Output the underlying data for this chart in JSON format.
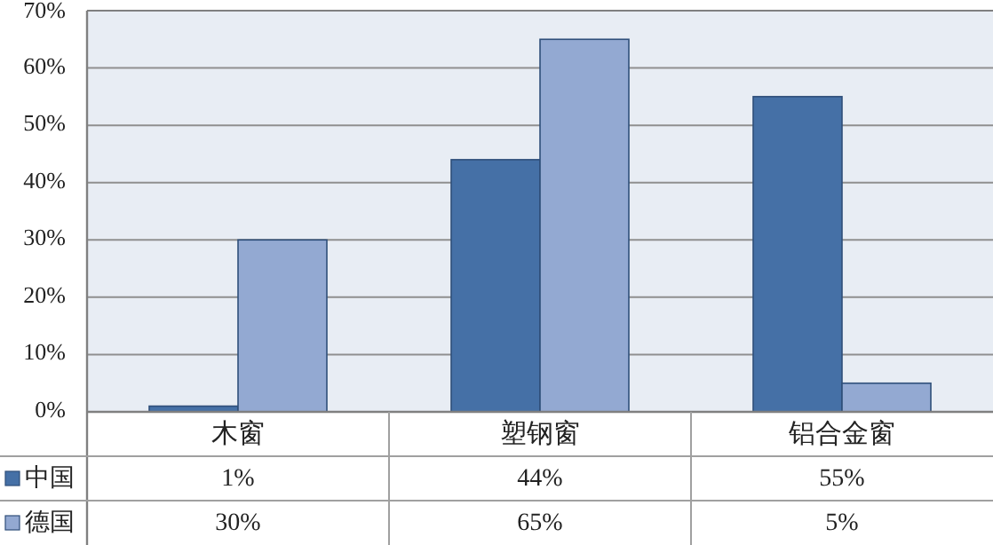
{
  "chart_data": {
    "type": "bar",
    "categories": [
      "木窗",
      "塑钢窗",
      "铝合金窗"
    ],
    "series": [
      {
        "name": "中国",
        "color": "#4570a6",
        "values": [
          1,
          44,
          55
        ],
        "value_labels": [
          "1%",
          "44%",
          "55%"
        ]
      },
      {
        "name": "德国",
        "color": "#93a9d2",
        "values": [
          30,
          65,
          5
        ],
        "value_labels": [
          "30%",
          "65%",
          "5%"
        ]
      }
    ],
    "ylim": [
      0,
      70
    ],
    "yticks": [
      {
        "value": 0,
        "label": "0%"
      },
      {
        "value": 10,
        "label": "10%"
      },
      {
        "value": 20,
        "label": "20%"
      },
      {
        "value": 30,
        "label": "30%"
      },
      {
        "value": 40,
        "label": "40%"
      },
      {
        "value": 50,
        "label": "50%"
      },
      {
        "value": 60,
        "label": "60%"
      },
      {
        "value": 70,
        "label": "70%"
      }
    ],
    "grid": "y",
    "legend": "bottom left"
  }
}
